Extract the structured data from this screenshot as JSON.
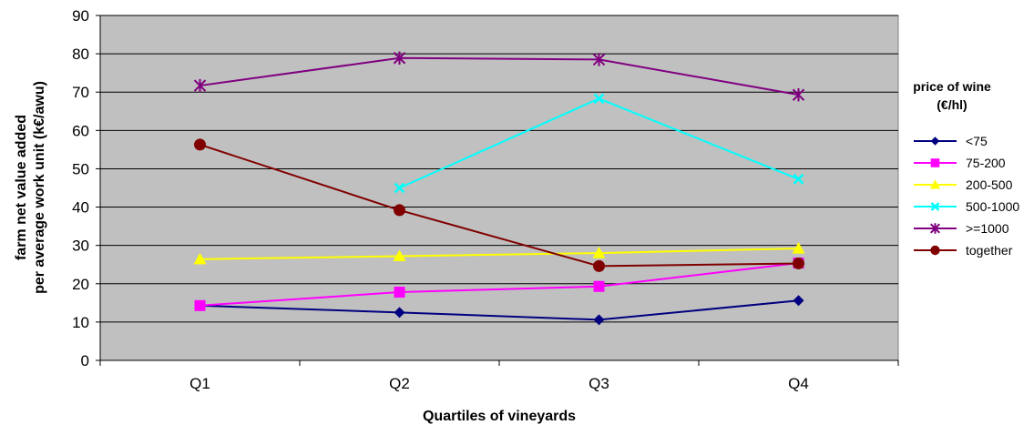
{
  "chart_data": {
    "type": "line",
    "title": "",
    "xlabel": "Quartiles  of vineyards",
    "ylabel": [
      "farm net value added",
      "per average work unit (k€/awu)"
    ],
    "categories": [
      "Q1",
      "Q2",
      "Q3",
      "Q4"
    ],
    "ylim": [
      0,
      90
    ],
    "yticks": [
      0,
      10,
      20,
      30,
      40,
      50,
      60,
      70,
      80,
      90
    ],
    "grid": true,
    "plot_background": "#c0c0c0",
    "legend": {
      "title_lines": [
        "price of wine",
        "(€/hl)"
      ],
      "position": "right"
    },
    "series": [
      {
        "name": "<75",
        "color": "#000080",
        "marker": "diamond",
        "values": [
          14.3,
          12.5,
          10.6,
          15.6
        ]
      },
      {
        "name": "75-200",
        "color": "#ff00ff",
        "marker": "square",
        "values": [
          14.3,
          17.8,
          19.3,
          25.4
        ]
      },
      {
        "name": "200-500",
        "color": "#ffff00",
        "marker": "triangle",
        "values": [
          26.4,
          27.2,
          28.0,
          29.2
        ]
      },
      {
        "name": "500-1000",
        "color": "#00ffff",
        "marker": "x",
        "values": [
          null,
          45.0,
          68.3,
          47.3
        ]
      },
      {
        "name": ">=1000",
        "color": "#800080",
        "marker": "star",
        "values": [
          71.7,
          78.9,
          78.5,
          69.3
        ]
      },
      {
        "name": "together",
        "color": "#800000",
        "marker": "circle",
        "values": [
          56.3,
          39.2,
          24.6,
          25.3
        ]
      }
    ]
  }
}
